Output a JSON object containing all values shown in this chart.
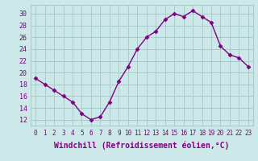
{
  "x": [
    0,
    1,
    2,
    3,
    4,
    5,
    6,
    7,
    8,
    9,
    10,
    11,
    12,
    13,
    14,
    15,
    16,
    17,
    18,
    19,
    20,
    21,
    22,
    23
  ],
  "y": [
    19,
    18,
    17,
    16,
    15,
    13,
    12,
    12.5,
    15,
    18.5,
    21,
    24,
    26,
    27,
    29,
    30,
    29.5,
    30.5,
    29.5,
    28.5,
    24.5,
    23,
    22.5,
    21
  ],
  "line_color": "#800080",
  "marker": "D",
  "marker_size": 2.5,
  "bg_color": "#cce8e8",
  "grid_color": "#aacccc",
  "xlabel": "Windchill (Refroidissement éolien,°C)",
  "xlabel_fontsize": 7,
  "tick_fontsize": 5.5,
  "ytick_fontsize": 6,
  "yticks": [
    12,
    14,
    16,
    18,
    20,
    22,
    24,
    26,
    28,
    30
  ],
  "xticks": [
    0,
    1,
    2,
    3,
    4,
    5,
    6,
    7,
    8,
    9,
    10,
    11,
    12,
    13,
    14,
    15,
    16,
    17,
    18,
    19,
    20,
    21,
    22,
    23
  ],
  "xlim": [
    -0.5,
    23.5
  ],
  "ylim": [
    11,
    31.5
  ]
}
